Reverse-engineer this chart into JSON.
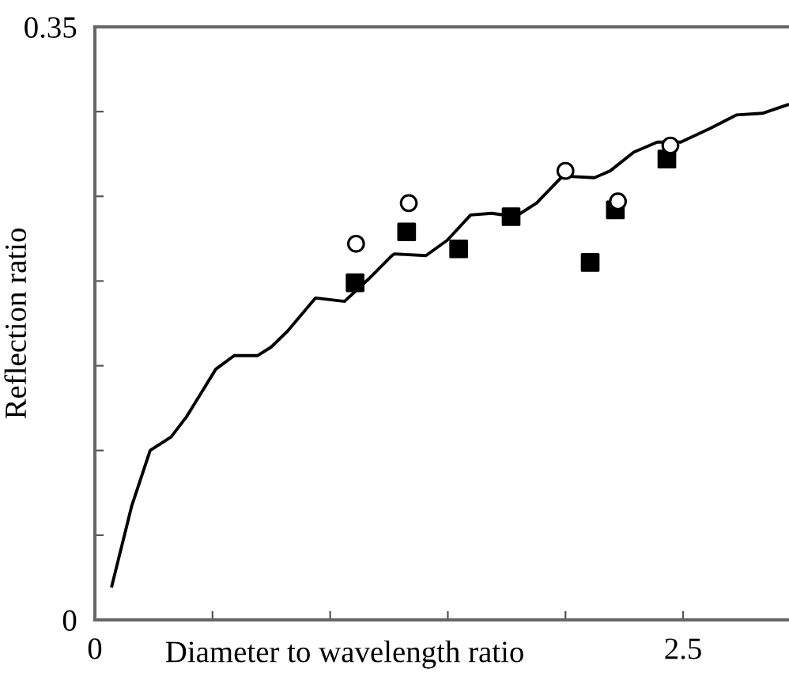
{
  "chart_data": {
    "type": "line",
    "xlabel": "Diameter to wavelength ratio",
    "ylabel": "Reflection ratio",
    "xlim": [
      0,
      2.95
    ],
    "ylim": [
      0,
      0.35
    ],
    "xticks": [
      0,
      {
        "value": 0.5,
        "label": null
      },
      {
        "value": 1.0,
        "label": null
      },
      {
        "value": 1.5,
        "label": null
      },
      {
        "value": 2.0,
        "label": null
      },
      2.5
    ],
    "yticks": [
      0,
      {
        "value": 0.05,
        "label": null
      },
      {
        "value": 0.1,
        "label": null
      },
      {
        "value": 0.15,
        "label": null
      },
      {
        "value": 0.2,
        "label": null
      },
      {
        "value": 0.25,
        "label": null
      },
      {
        "value": 0.3,
        "label": null
      },
      0.35
    ],
    "grid": false,
    "legend": false,
    "series": [
      {
        "color": "#000000",
        "marker": "none",
        "line_style": "solid",
        "x": [
          0.072,
          0.156,
          0.235,
          0.324,
          0.39,
          0.514,
          0.592,
          0.692,
          0.749,
          0.816,
          0.938,
          1.061,
          1.162,
          1.262,
          1.273,
          1.407,
          1.497,
          1.597,
          1.687,
          1.787,
          1.877,
          1.988,
          2.123,
          2.19,
          2.29,
          2.39,
          2.49,
          2.614,
          2.726,
          2.837,
          2.944
        ],
        "values": [
          0.02,
          0.067,
          0.1,
          0.108,
          0.12,
          0.148,
          0.156,
          0.156,
          0.161,
          0.17,
          0.19,
          0.188,
          0.201,
          0.215,
          0.216,
          0.215,
          0.224,
          0.239,
          0.24,
          0.238,
          0.246,
          0.262,
          0.261,
          0.265,
          0.276,
          0.282,
          0.282,
          0.29,
          0.298,
          0.299,
          0.304
        ]
      },
      {
        "type": "scatter",
        "color": "#000000",
        "marker": "square",
        "x": [
          1.106,
          1.325,
          1.546,
          1.769,
          2.105,
          2.212,
          2.431
        ],
        "values": [
          0.199,
          0.229,
          0.219,
          0.238,
          0.211,
          0.242,
          0.272
        ]
      },
      {
        "type": "scatter",
        "color": "#000000",
        "marker": "circle",
        "x": [
          1.11,
          1.334,
          2.0,
          2.223,
          2.446
        ],
        "values": [
          0.222,
          0.246,
          0.265,
          0.247,
          0.28
        ]
      }
    ]
  }
}
